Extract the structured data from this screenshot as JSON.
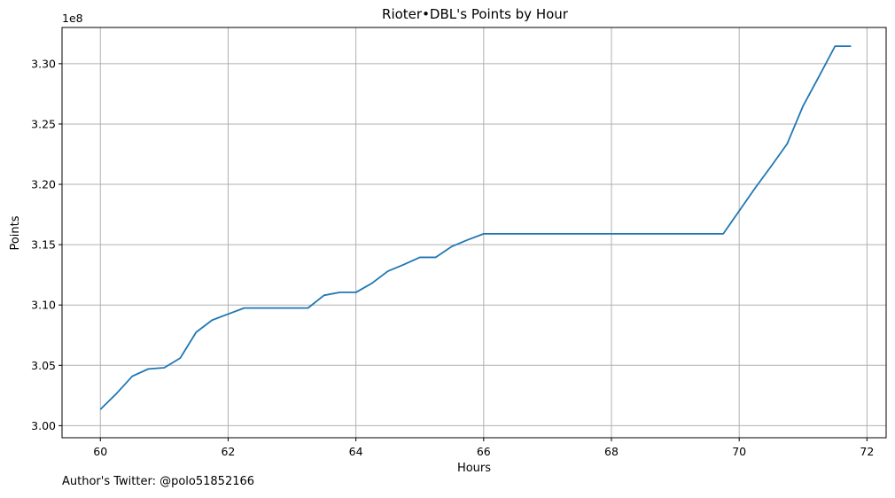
{
  "chart_data": {
    "type": "line",
    "title": "Rioter•DBL's Points by Hour",
    "xlabel": "Hours",
    "ylabel": "Points",
    "y_offset_label": "1e8",
    "xlim": [
      59.4,
      72.3
    ],
    "ylim": [
      2.99,
      3.33
    ],
    "x_ticks": [
      60,
      62,
      64,
      66,
      68,
      70,
      72
    ],
    "y_ticks": [
      3.0,
      3.05,
      3.1,
      3.15,
      3.2,
      3.25,
      3.3
    ],
    "y_tick_labels": [
      "3.00",
      "3.05",
      "3.10",
      "3.15",
      "3.20",
      "3.25",
      "3.30"
    ],
    "grid": true,
    "line_color": "#1f77b4",
    "series": [
      {
        "x": [
          60.0,
          60.25,
          60.5,
          60.75,
          61.0,
          61.25,
          61.5,
          61.75,
          62.0,
          62.25,
          62.5,
          62.75,
          63.0,
          63.25,
          63.5,
          63.75,
          64.0,
          64.25,
          64.5,
          64.75,
          65.0,
          65.25,
          65.5,
          65.75,
          66.0,
          66.25,
          66.5,
          66.75,
          67.0,
          67.25,
          67.5,
          67.75,
          68.0,
          68.25,
          68.5,
          68.75,
          69.0,
          69.25,
          69.5,
          69.75,
          70.0,
          70.25,
          70.5,
          70.75,
          71.0,
          71.25,
          71.5,
          71.75
        ],
        "values": [
          3.0135,
          3.0265,
          3.041,
          3.047,
          3.048,
          3.056,
          3.0775,
          3.0875,
          3.0925,
          3.0975,
          3.0975,
          3.0975,
          3.0975,
          3.0975,
          3.108,
          3.1105,
          3.1105,
          3.118,
          3.128,
          3.1335,
          3.1395,
          3.1395,
          3.1485,
          3.154,
          3.159,
          3.159,
          3.159,
          3.159,
          3.159,
          3.159,
          3.159,
          3.159,
          3.159,
          3.159,
          3.159,
          3.159,
          3.159,
          3.159,
          3.159,
          3.159,
          3.178,
          3.197,
          3.215,
          3.2335,
          3.265,
          3.2895,
          3.3145,
          3.3145
        ]
      }
    ]
  },
  "footer_text": "Author's Twitter: @polo51852166"
}
